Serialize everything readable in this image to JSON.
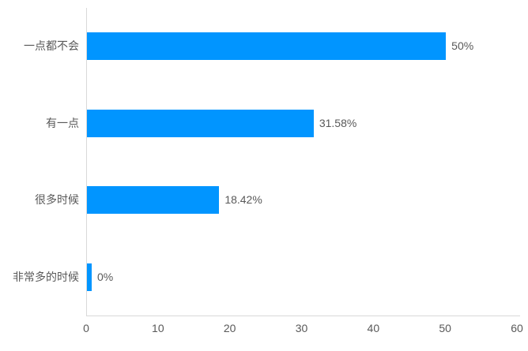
{
  "chart_data": {
    "type": "bar",
    "orientation": "horizontal",
    "title": "",
    "xlabel": "",
    "ylabel": "",
    "categories": [
      "一点都不会",
      "有一点",
      "很多时候",
      "非常多的时候"
    ],
    "values": [
      50,
      31.58,
      18.42,
      0
    ],
    "value_labels": [
      "50%",
      "31.58%",
      "18.42%",
      "0%"
    ],
    "x_ticks": [
      "0",
      "10",
      "20",
      "30",
      "40",
      "50",
      "60"
    ],
    "x_tick_values": [
      0,
      10,
      20,
      30,
      40,
      50,
      60
    ],
    "xlim": [
      0,
      60
    ],
    "grid": false,
    "legend": false,
    "colors": {
      "bar": "#0195ff",
      "axis_line": "#d9d9d9",
      "text": "#595959",
      "background": "#ffffff"
    }
  }
}
